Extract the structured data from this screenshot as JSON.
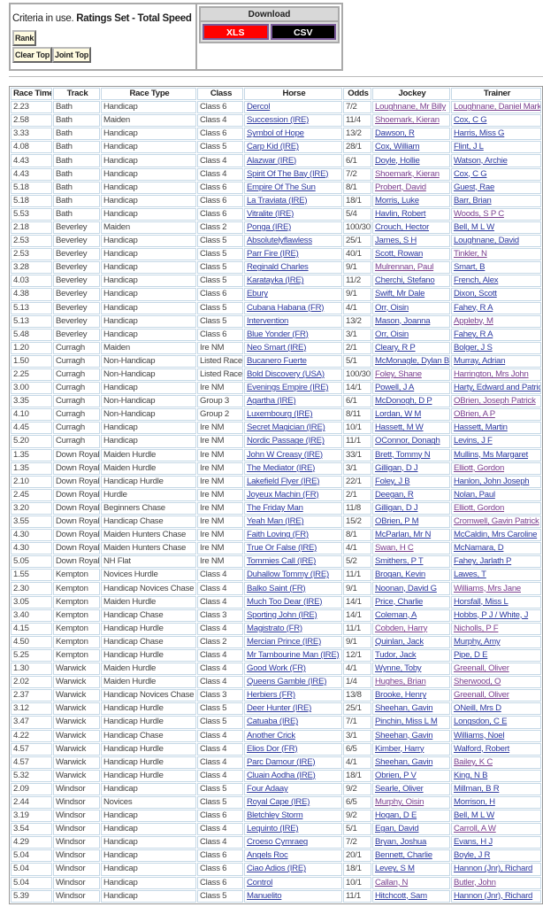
{
  "criteria": {
    "prefix": "Criteria in use.",
    "value": "Ratings Set - Total Speed"
  },
  "buttons": {
    "rank": "Rank",
    "clear_top": "Clear Top",
    "joint_top": "Joint Top"
  },
  "download": {
    "title": "Download",
    "xls": "XLS",
    "csv": "CSV",
    "xls_color": "#ff0000",
    "csv_color": "#000000"
  },
  "table": {
    "headers": [
      "Race Time",
      "Track",
      "Race Type",
      "Class",
      "Horse",
      "Odds",
      "Jockey",
      "Trainer"
    ],
    "link_color": "#2c3aa0",
    "visited_color": "#7a3f8f",
    "rows": [
      [
        "2.23",
        "Bath",
        "Handicap",
        "Class 6",
        "Dercol",
        "7/2",
        "Loughnane, Mr Billy",
        "Loughnane, Daniel Mark",
        1,
        1
      ],
      [
        "2.58",
        "Bath",
        "Maiden",
        "Class 4",
        "Succession (IRE)",
        "11/4",
        "Shoemark, Kieran",
        "Cox, C G",
        1,
        0
      ],
      [
        "3.33",
        "Bath",
        "Handicap",
        "Class 6",
        "Symbol of Hope",
        "13/2",
        "Dawson, R",
        "Harris, Miss G",
        0,
        0
      ],
      [
        "4.08",
        "Bath",
        "Handicap",
        "Class 5",
        "Carp Kid (IRE)",
        "28/1",
        "Cox, William",
        "Flint, J L",
        0,
        0
      ],
      [
        "4.43",
        "Bath",
        "Handicap",
        "Class 4",
        "Alazwar (IRE)",
        "6/1",
        "Doyle, Hollie",
        "Watson, Archie",
        0,
        0
      ],
      [
        "4.43",
        "Bath",
        "Handicap",
        "Class 4",
        "Spirit Of The Bay (IRE)",
        "7/2",
        "Shoemark, Kieran",
        "Cox, C G",
        1,
        0
      ],
      [
        "5.18",
        "Bath",
        "Handicap",
        "Class 6",
        "Empire Of The Sun",
        "8/1",
        "Probert, David",
        "Guest, Rae",
        1,
        0
      ],
      [
        "5.18",
        "Bath",
        "Handicap",
        "Class 6",
        "La Traviata (IRE)",
        "18/1",
        "Morris, Luke",
        "Barr, Brian",
        0,
        0
      ],
      [
        "5.53",
        "Bath",
        "Handicap",
        "Class 6",
        "Vitralite (IRE)",
        "5/4",
        "Havlin, Robert",
        "Woods, S P C",
        0,
        1
      ],
      [
        "2.18",
        "Beverley",
        "Maiden",
        "Class 2",
        "Ponga (IRE)",
        "100/30",
        "Crouch, Hector",
        "Bell, M L W",
        0,
        0
      ],
      [
        "2.53",
        "Beverley",
        "Handicap",
        "Class 5",
        "Absolutelyflawless",
        "25/1",
        "James, S H",
        "Loughnane, David",
        0,
        0
      ],
      [
        "2.53",
        "Beverley",
        "Handicap",
        "Class 5",
        "Parr Fire (IRE)",
        "40/1",
        "Scott, Rowan",
        "Tinkler, N",
        0,
        1
      ],
      [
        "3.28",
        "Beverley",
        "Handicap",
        "Class 5",
        "Reginald Charles",
        "9/1",
        "Mulrennan, Paul",
        "Smart, B",
        1,
        0
      ],
      [
        "4.03",
        "Beverley",
        "Handicap",
        "Class 5",
        "Karatayka (IRE)",
        "11/2",
        "Cherchi, Stefano",
        "French, Alex",
        0,
        0
      ],
      [
        "4.38",
        "Beverley",
        "Handicap",
        "Class 6",
        "Ebury",
        "9/1",
        "Swift, Mr Dale",
        "Dixon, Scott",
        0,
        0
      ],
      [
        "5.13",
        "Beverley",
        "Handicap",
        "Class 5",
        "Cubana Habana (FR)",
        "4/1",
        "Orr, Oisin",
        "Fahey, R A",
        0,
        0
      ],
      [
        "5.13",
        "Beverley",
        "Handicap",
        "Class 5",
        "Intervention",
        "13/2",
        "Mason, Joanna",
        "Appleby, M",
        0,
        1
      ],
      [
        "5.48",
        "Beverley",
        "Handicap",
        "Class 6",
        "Blue Yonder (FR)",
        "3/1",
        "Orr, Oisin",
        "Fahey, R A",
        0,
        0
      ],
      [
        "1.20",
        "Curragh",
        "Maiden",
        "Ire NM",
        "Neo Smart (IRE)",
        "2/1",
        "Cleary, R P",
        "Bolger, J S",
        0,
        0
      ],
      [
        "1.50",
        "Curragh",
        "Non-Handicap",
        "Listed Race",
        "Bucanero Fuerte",
        "5/1",
        "McMonagle, Dylan B",
        "Murray, Adrian",
        0,
        0
      ],
      [
        "2.25",
        "Curragh",
        "Non-Handicap",
        "Listed Race",
        "Bold Discovery (USA)",
        "100/30",
        "Foley, Shane",
        "Harrington, Mrs John",
        1,
        1
      ],
      [
        "3.00",
        "Curragh",
        "Handicap",
        "Ire NM",
        "Evenings Empire (IRE)",
        "14/1",
        "Powell, J A",
        "Harty, Edward and Patrick",
        0,
        0
      ],
      [
        "3.35",
        "Curragh",
        "Non-Handicap",
        "Group 3",
        "Agartha (IRE)",
        "6/1",
        "McDonogh, D P",
        "OBrien, Joseph Patrick",
        0,
        1
      ],
      [
        "4.10",
        "Curragh",
        "Non-Handicap",
        "Group 2",
        "Luxembourg (IRE)",
        "8/11",
        "Lordan, W M",
        "OBrien, A P",
        0,
        1
      ],
      [
        "4.45",
        "Curragh",
        "Handicap",
        "Ire NM",
        "Secret Magician (IRE)",
        "10/1",
        "Hassett, M W",
        "Hassett, Martin",
        0,
        0
      ],
      [
        "5.20",
        "Curragh",
        "Handicap",
        "Ire NM",
        "Nordic Passage (IRE)",
        "11/1",
        "OConnor, Donagh",
        "Levins, J F",
        0,
        0
      ],
      [
        "1.35",
        "Down Royal",
        "Maiden Hurdle",
        "Ire NM",
        "John W Creasy (IRE)",
        "33/1",
        "Brett, Tommy N",
        "Mullins, Ms Margaret",
        0,
        0
      ],
      [
        "1.35",
        "Down Royal",
        "Maiden Hurdle",
        "Ire NM",
        "The Mediator (IRE)",
        "3/1",
        "Gilligan, D J",
        "Elliott, Gordon",
        0,
        1
      ],
      [
        "2.10",
        "Down Royal",
        "Handicap Hurdle",
        "Ire NM",
        "Lakefield Flyer (IRE)",
        "22/1",
        "Foley, J B",
        "Hanlon, John Joseph",
        0,
        0
      ],
      [
        "2.45",
        "Down Royal",
        "Hurdle",
        "Ire NM",
        "Joyeux Machin (FR)",
        "2/1",
        "Deegan, R",
        "Nolan, Paul",
        0,
        0
      ],
      [
        "3.20",
        "Down Royal",
        "Beginners Chase",
        "Ire NM",
        "The Friday Man",
        "11/8",
        "Gilligan, D J",
        "Elliott, Gordon",
        0,
        1
      ],
      [
        "3.55",
        "Down Royal",
        "Handicap Chase",
        "Ire NM",
        "Yeah Man (IRE)",
        "15/2",
        "OBrien, P M",
        "Cromwell, Gavin Patrick",
        0,
        1
      ],
      [
        "4.30",
        "Down Royal",
        "Maiden Hunters Chase",
        "Ire NM",
        "Faith Loving (FR)",
        "8/1",
        "McParlan, Mr N",
        "McCaldin, Mrs Caroline",
        0,
        0
      ],
      [
        "4.30",
        "Down Royal",
        "Maiden Hunters Chase",
        "Ire NM",
        "True Or False (IRE)",
        "4/1",
        "Swan, H C",
        "McNamara, D",
        1,
        0
      ],
      [
        "5.05",
        "Down Royal",
        "NH Flat",
        "Ire NM",
        "Tommies Call (IRE)",
        "5/2",
        "Smithers, P T",
        "Fahey, Jarlath P",
        0,
        0
      ],
      [
        "1.55",
        "Kempton",
        "Novices Hurdle",
        "Class 4",
        "Duhallow Tommy (IRE)",
        "11/1",
        "Brogan, Kevin",
        "Lawes, T",
        0,
        0
      ],
      [
        "2.30",
        "Kempton",
        "Handicap Novices Chase",
        "Class 4",
        "Balko Saint (FR)",
        "9/1",
        "Noonan, David G",
        "Williams, Mrs Jane",
        0,
        1
      ],
      [
        "3.05",
        "Kempton",
        "Maiden Hurdle",
        "Class 4",
        "Much Too Dear (IRE)",
        "14/1",
        "Price, Charlie",
        "Horsfall, Miss L",
        0,
        0
      ],
      [
        "3.40",
        "Kempton",
        "Handicap Chase",
        "Class 3",
        "Sporting John (IRE)",
        "14/1",
        "Coleman, A",
        "Hobbs, P J / White, J",
        0,
        0
      ],
      [
        "4.15",
        "Kempton",
        "Handicap Hurdle",
        "Class 4",
        "Magistrato (FR)",
        "11/1",
        "Cobden, Harry",
        "Nicholls, P F",
        1,
        1
      ],
      [
        "4.50",
        "Kempton",
        "Handicap Chase",
        "Class 2",
        "Mercian Prince (IRE)",
        "9/1",
        "Quinlan, Jack",
        "Murphy, Amy",
        0,
        0
      ],
      [
        "5.25",
        "Kempton",
        "Handicap Hurdle",
        "Class 4",
        "Mr Tambourine Man (IRE)",
        "12/1",
        "Tudor, Jack",
        "Pipe, D E",
        0,
        0
      ],
      [
        "1.30",
        "Warwick",
        "Maiden Hurdle",
        "Class 4",
        "Good Work (FR)",
        "4/1",
        "Wynne, Toby",
        "Greenall, Oliver",
        0,
        1
      ],
      [
        "2.02",
        "Warwick",
        "Maiden Hurdle",
        "Class 4",
        "Queens Gamble (IRE)",
        "1/4",
        "Hughes, Brian",
        "Sherwood, O",
        1,
        1
      ],
      [
        "2.37",
        "Warwick",
        "Handicap Novices Chase",
        "Class 3",
        "Herbiers (FR)",
        "13/8",
        "Brooke, Henry",
        "Greenall, Oliver",
        0,
        1
      ],
      [
        "3.12",
        "Warwick",
        "Handicap Hurdle",
        "Class 5",
        "Deer Hunter (IRE)",
        "25/1",
        "Sheehan, Gavin",
        "ONeill, Mrs D",
        0,
        0
      ],
      [
        "3.47",
        "Warwick",
        "Handicap Hurdle",
        "Class 5",
        "Catuaba (IRE)",
        "7/1",
        "Pinchin, Miss L M",
        "Longsdon, C E",
        0,
        0
      ],
      [
        "4.22",
        "Warwick",
        "Handicap Chase",
        "Class 4",
        "Another Crick",
        "3/1",
        "Sheehan, Gavin",
        "Williams, Noel",
        0,
        0
      ],
      [
        "4.57",
        "Warwick",
        "Handicap Hurdle",
        "Class 4",
        "Elios Dor (FR)",
        "6/5",
        "Kimber, Harry",
        "Walford, Robert",
        0,
        0
      ],
      [
        "4.57",
        "Warwick",
        "Handicap Hurdle",
        "Class 4",
        "Parc Damour (IRE)",
        "4/1",
        "Sheehan, Gavin",
        "Bailey, K C",
        0,
        1
      ],
      [
        "5.32",
        "Warwick",
        "Handicap Hurdle",
        "Class 4",
        "Cluain Aodha (IRE)",
        "18/1",
        "Obrien, P V",
        "King, N B",
        0,
        0
      ],
      [
        "2.09",
        "Windsor",
        "Handicap",
        "Class 5",
        "Four Adaay",
        "9/2",
        "Searle, Oliver",
        "Millman, B R",
        0,
        0
      ],
      [
        "2.44",
        "Windsor",
        "Novices",
        "Class 5",
        "Royal Cape (IRE)",
        "6/5",
        "Murphy, Oisin",
        "Morrison, H",
        1,
        0
      ],
      [
        "3.19",
        "Windsor",
        "Handicap",
        "Class 6",
        "Bletchley Storm",
        "9/2",
        "Hogan, D E",
        "Bell, M L W",
        0,
        0
      ],
      [
        "3.54",
        "Windsor",
        "Handicap",
        "Class 4",
        "Lequinto (IRE)",
        "5/1",
        "Egan, David",
        "Carroll, A W",
        0,
        1
      ],
      [
        "4.29",
        "Windsor",
        "Handicap",
        "Class 4",
        "Croeso Cymraeg",
        "7/2",
        "Bryan, Joshua",
        "Evans, H J",
        0,
        0
      ],
      [
        "5.04",
        "Windsor",
        "Handicap",
        "Class 6",
        "Angels Roc",
        "20/1",
        "Bennett, Charlie",
        "Boyle, J R",
        0,
        0
      ],
      [
        "5.04",
        "Windsor",
        "Handicap",
        "Class 6",
        "Ciao Adios (IRE)",
        "18/1",
        "Levey, S M",
        "Hannon (Jnr), Richard",
        0,
        0
      ],
      [
        "5.04",
        "Windsor",
        "Handicap",
        "Class 6",
        "Control",
        "10/1",
        "Callan, N",
        "Butler, John",
        1,
        1
      ],
      [
        "5.39",
        "Windsor",
        "Handicap",
        "Class 5",
        "Manuelito",
        "11/1",
        "Hitchcott, Sam",
        "Hannon (Jnr), Richard",
        0,
        0
      ]
    ]
  }
}
